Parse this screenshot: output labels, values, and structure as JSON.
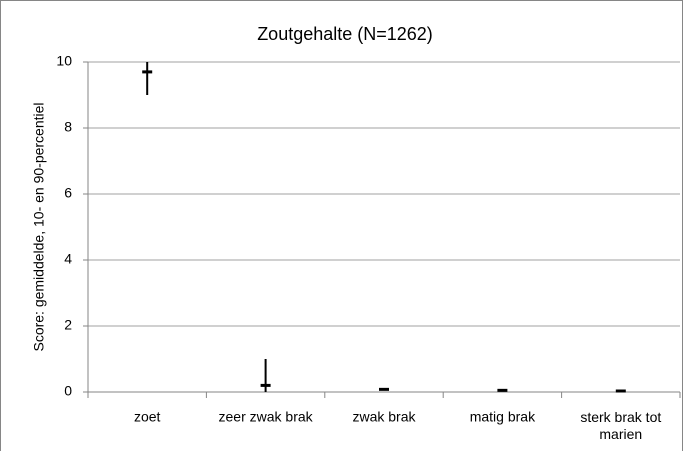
{
  "chart_data": {
    "type": "errorbar",
    "title": "Zoutgehalte (N=1262)",
    "ylabel": "Score: gemiddelde, 10- en 90-percentiel",
    "categories": [
      "zoet",
      "zeer zwak brak",
      "zwak brak",
      "matig brak",
      "sterk brak tot marien"
    ],
    "values": [
      9.7,
      0.2,
      0.08,
      0.05,
      0.03
    ],
    "p10": [
      9.0,
      0,
      0.05,
      0.03,
      0.01
    ],
    "p90": [
      10,
      1.0,
      0.12,
      0.08,
      0.05
    ],
    "color": "#000000",
    "ylim": [
      0,
      10
    ],
    "yticks": [
      0,
      2,
      4,
      6,
      8,
      10
    ],
    "grid": true
  }
}
